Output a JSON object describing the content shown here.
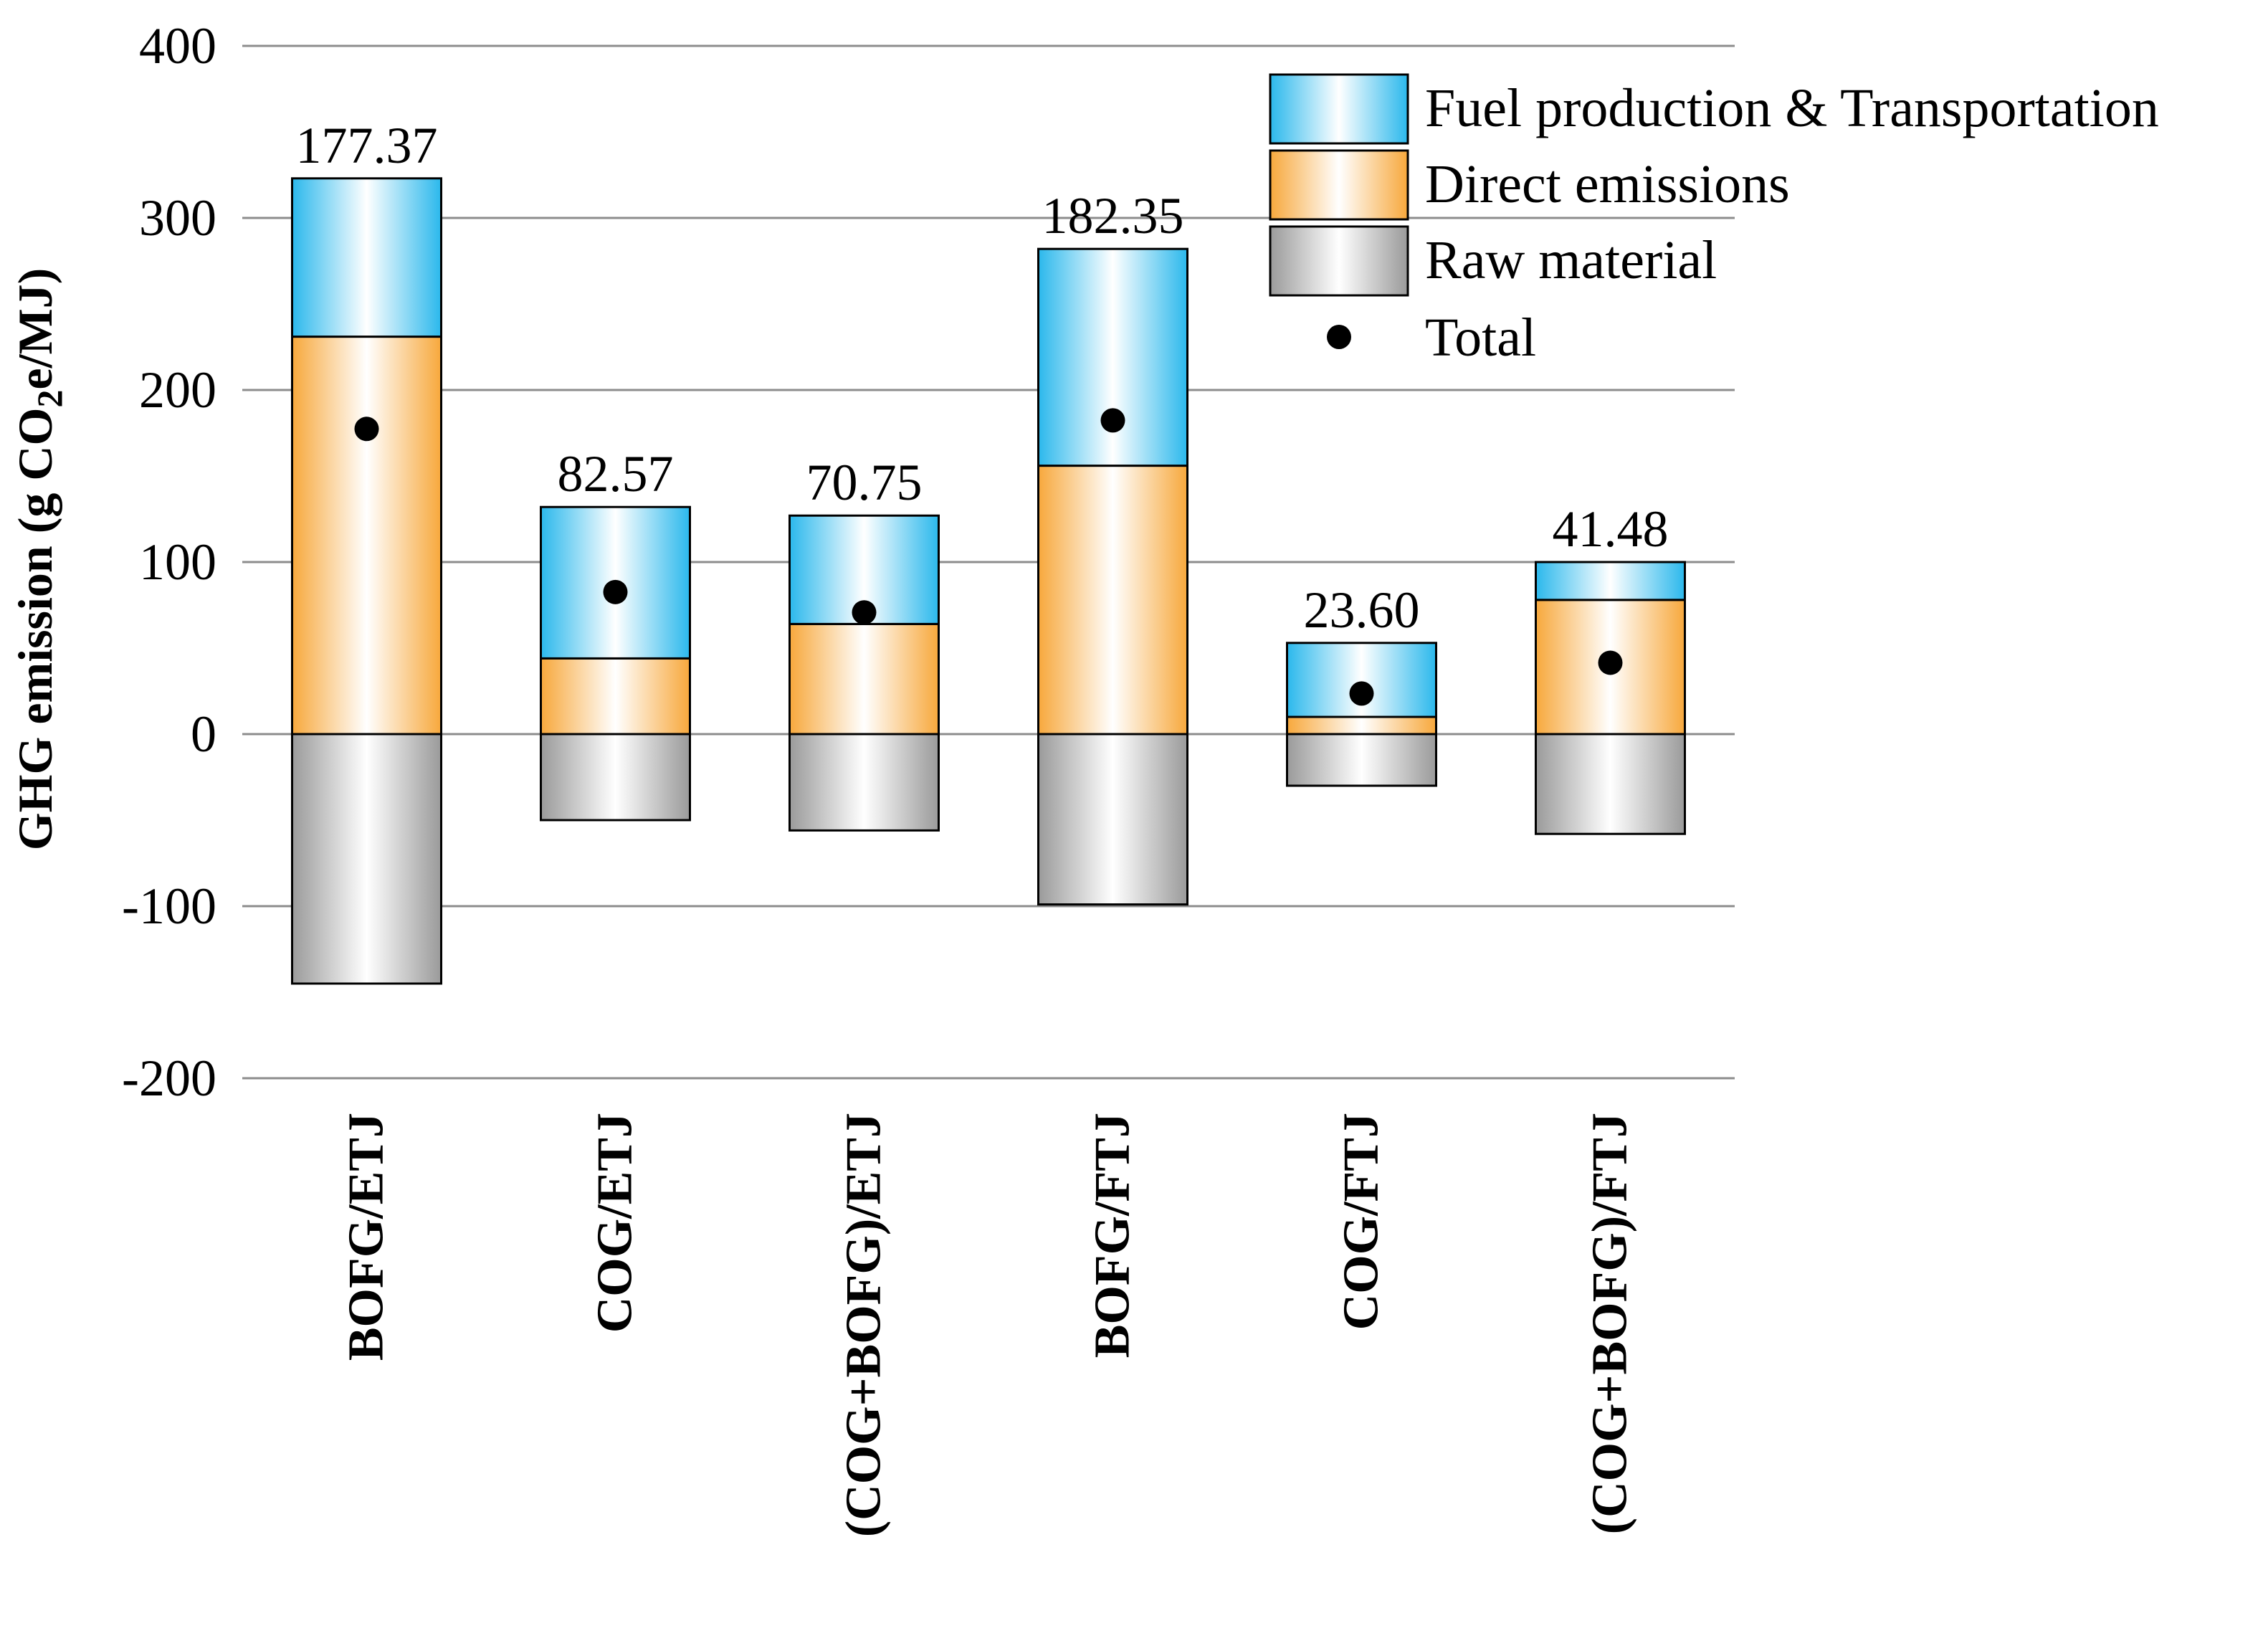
{
  "chart_data": {
    "type": "bar",
    "stacked": true,
    "title": "",
    "xlabel": "",
    "ylabel": "GHG emission (g CO₂e/MJ)",
    "ylabel_parts": {
      "prefix": "GHG emission (g CO",
      "subscript": "2",
      "suffix": "e/MJ)"
    },
    "ylim": [
      -200,
      400
    ],
    "yticks": [
      400,
      300,
      200,
      100,
      0,
      -100,
      -200
    ],
    "ytick_labels": [
      "400",
      "300",
      "200",
      "100",
      "0",
      "-100",
      "-200"
    ],
    "grid": true,
    "legend_position": "top-right",
    "categories": [
      "BOFG/ETJ",
      "COG/ETJ",
      "(COG+BOFG)/ETJ",
      "BOFG/FTJ",
      "COG/FTJ",
      "(COG+BOFG)/FTJ"
    ],
    "series": [
      {
        "name": "Fuel production & Transportation",
        "color_top": "#2bb8ec",
        "color_mid": "#ffffff",
        "values": [
          92,
          88,
          63,
          126,
          43,
          22
        ]
      },
      {
        "name": "Direct emissions",
        "color_top": "#f7a83c",
        "color_mid": "#ffffff",
        "values": [
          231,
          44,
          64,
          156,
          10,
          78
        ]
      },
      {
        "name": "Raw material",
        "color_top": "#9a9a9a",
        "color_mid": "#ffffff",
        "values": [
          -145,
          -50,
          -56,
          -99,
          -30,
          -58
        ]
      }
    ],
    "total": {
      "name": "Total",
      "values": [
        177.37,
        82.57,
        70.75,
        182.35,
        23.6,
        41.48
      ],
      "labels": [
        "177.37",
        "82.57",
        "70.75",
        "182.35",
        "23.60",
        "41.48"
      ]
    }
  }
}
